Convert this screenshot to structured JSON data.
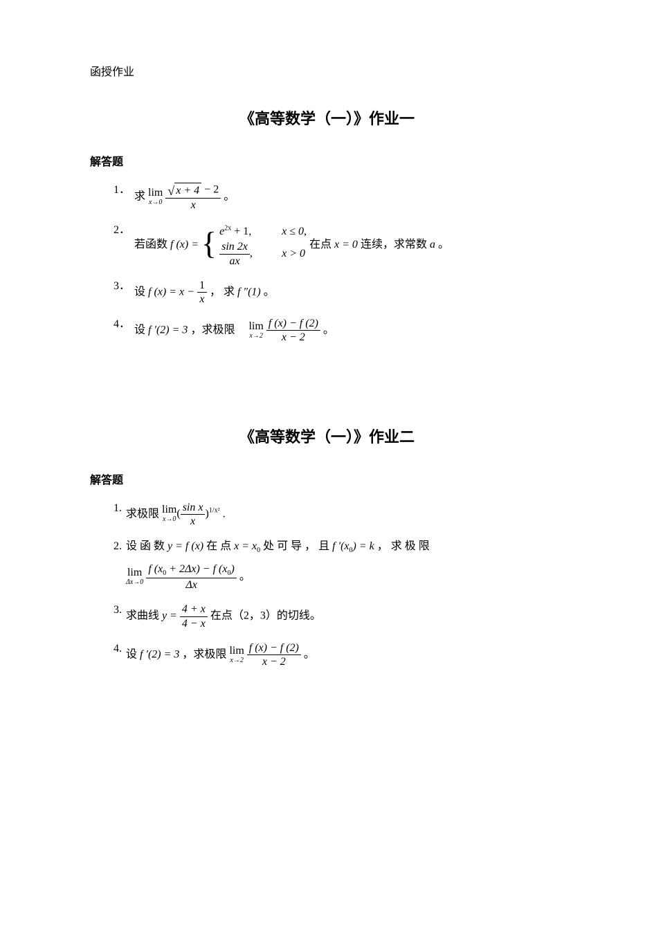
{
  "colors": {
    "background": "#ffffff",
    "text": "#000000"
  },
  "typography": {
    "body_font": "SimSun, serif",
    "heading_font": "SimHei, sans-serif",
    "math_font": "Times New Roman, serif",
    "body_fontsize_pt": 12,
    "title_fontsize_pt": 16
  },
  "header_label": "函授作业",
  "assignments": [
    {
      "title": "《高等数学（一）》作业一",
      "section_label": "解答题",
      "problems": [
        {
          "num": "1．",
          "lead": "求",
          "lim_sub": "x→0",
          "frac_num_sqrt_body": "x + 4",
          "frac_num_tail": " − 2",
          "frac_den": "x",
          "tail": " 。"
        },
        {
          "num": "2．",
          "lead": "若函数 ",
          "fx": "f (x) = ",
          "case1_expr_a": "e",
          "case1_expr_sup": "2x",
          "case1_expr_b": " + 1,",
          "case1_cond": "x ≤ 0,",
          "case2_num": "sin 2x",
          "case2_den": "ax",
          "case2_tail": ",",
          "case2_cond": "x > 0",
          "mid": " 在点 ",
          "xeq": "x = 0",
          "mid2": " 连续，求常数 ",
          "a": "a",
          "tail": " 。"
        },
        {
          "num": "3．",
          "lead": " 设 ",
          "fx": "f (x) = x − ",
          "frac_num": "1",
          "frac_den": "x",
          "mid": " ， 求 ",
          "fpp": "f ″(1)",
          "tail": " 。"
        },
        {
          "num": "4．",
          "lead": "设 ",
          "fp": "f ′(2) = 3",
          "mid": "，求极限　",
          "lim_sub": "x→2",
          "frac_num": "f (x) − f (2)",
          "frac_den": "x − 2",
          "tail": " 。"
        }
      ]
    },
    {
      "title": "《高等数学（一）》作业二",
      "section_label": "解答题",
      "problems": [
        {
          "num": "1.",
          "lead": " 求极限 ",
          "lim_sub": "x→0",
          "open": "(",
          "frac_num": "sin x",
          "frac_den": "x",
          "close": ")",
          "exp": "1/x²",
          "tail": "."
        },
        {
          "num": "2.",
          "lead": " 设 函 数 ",
          "yfx": "y = f (x)",
          "mid1": " 在 点 ",
          "xx0": "x = x",
          "sub0a": "0",
          "mid2": " 处 可 导 ， 且 ",
          "fpx0": "f ′(x",
          "sub0b": "0",
          "fpx0b": ") = k",
          "mid3": " ， 求 极 限",
          "lim_sub": "Δx→0",
          "frac_num_a": "f (x",
          "frac_num_sub1": "0",
          "frac_num_b": " + 2Δx) − f (x",
          "frac_num_sub2": "0",
          "frac_num_c": ")",
          "frac_den": "Δx",
          "tail": " 。"
        },
        {
          "num": "3.",
          "lead": " 求曲线 ",
          "yeq": "y = ",
          "frac_num": "4 + x",
          "frac_den": "4 − x",
          "mid": " 在点（2，3）的切线。"
        },
        {
          "num": "4.",
          "lead": " 设 ",
          "fp": "f ′(2) = 3",
          "mid": "，求极限 ",
          "lim_sub": "x→2",
          "frac_num": "f (x) − f (2)",
          "frac_den": "x − 2",
          "tail": " 。"
        }
      ]
    }
  ]
}
